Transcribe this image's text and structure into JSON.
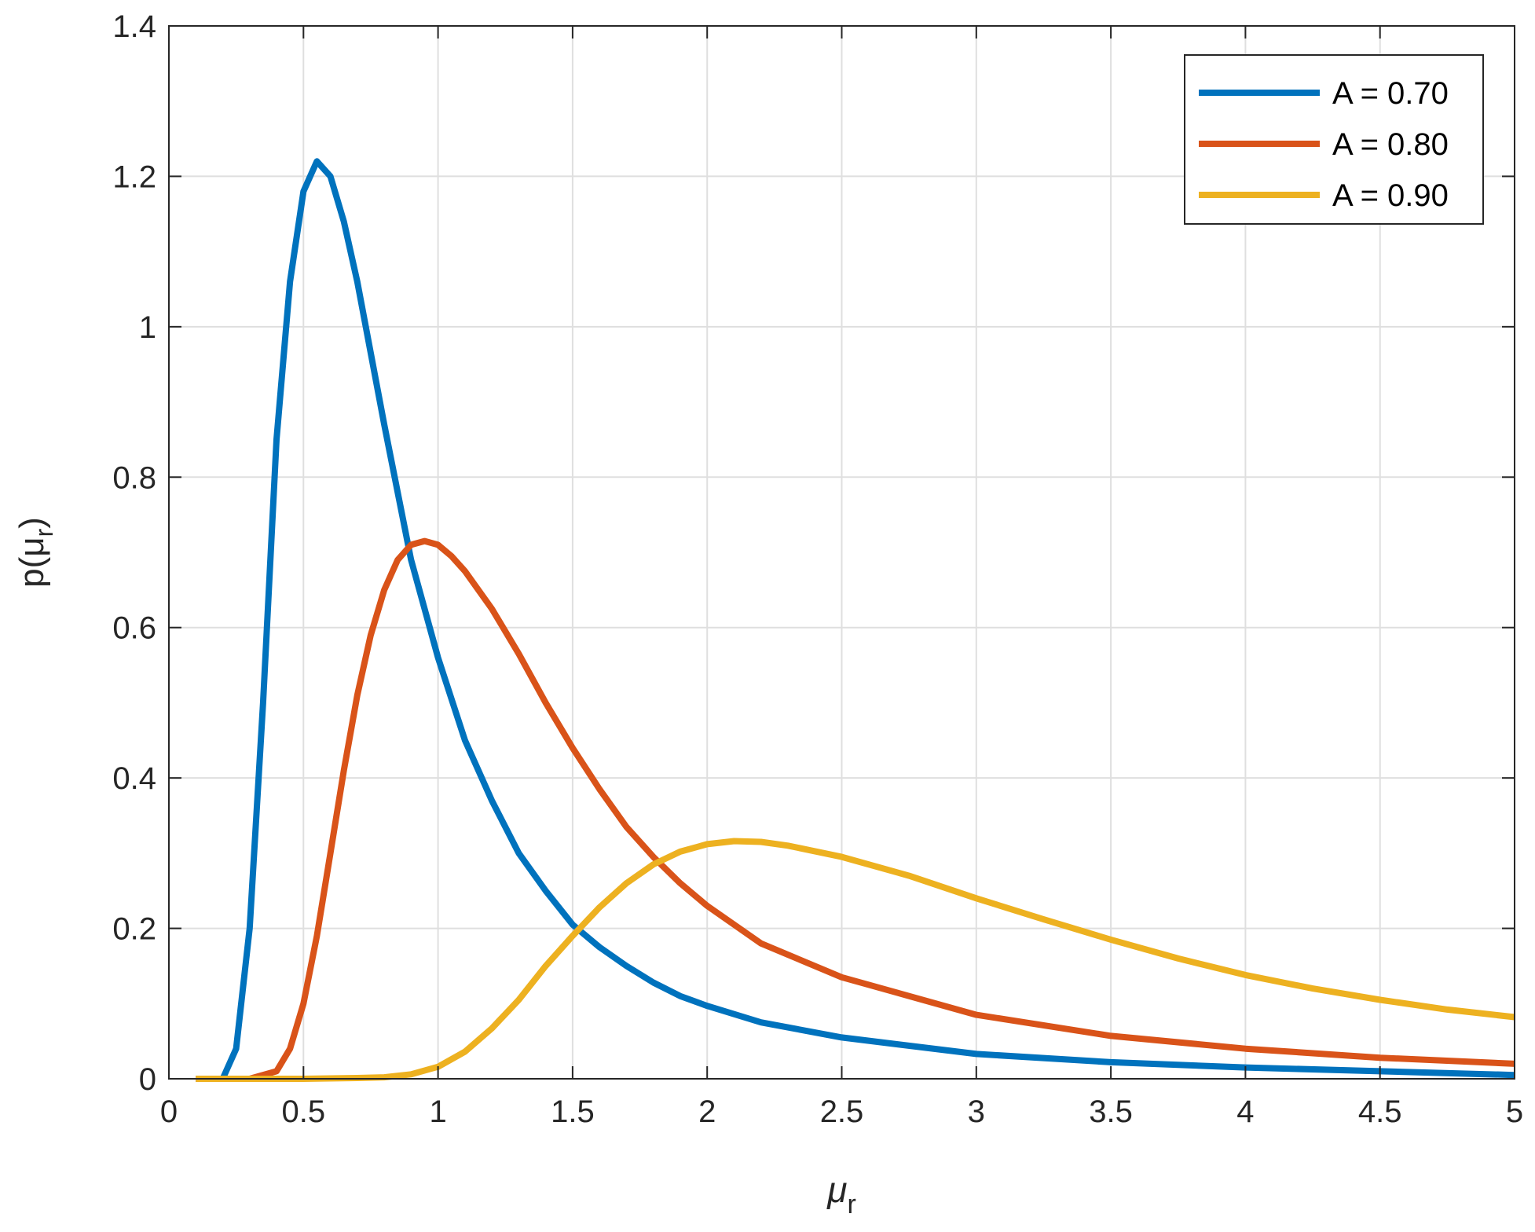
{
  "chart_data": {
    "type": "line",
    "title": "",
    "xlabel": "μ",
    "xlabel_sub": "r",
    "ylabel": "p(μ",
    "ylabel_sub": "r",
    "ylabel_suffix": ")",
    "xlim": [
      0,
      5
    ],
    "ylim": [
      0,
      1.4
    ],
    "xticks": [
      0,
      0.5,
      1,
      1.5,
      2,
      2.5,
      3,
      3.5,
      4,
      4.5,
      5
    ],
    "yticks": [
      0,
      0.2,
      0.4,
      0.6,
      0.8,
      1,
      1.2,
      1.4
    ],
    "xtick_labels": [
      "0",
      "0.5",
      "1",
      "1.5",
      "2",
      "2.5",
      "3",
      "3.5",
      "4",
      "4.5",
      "5"
    ],
    "ytick_labels": [
      "0",
      "0.2",
      "0.4",
      "0.6",
      "0.8",
      "1",
      "1.2",
      "1.4"
    ],
    "grid": true,
    "legend_position": "top-right",
    "series": [
      {
        "name": "A = 0.70",
        "color": "#0072BD",
        "points": [
          [
            0.1,
            0
          ],
          [
            0.2,
            0
          ],
          [
            0.25,
            0.04
          ],
          [
            0.3,
            0.2
          ],
          [
            0.35,
            0.5
          ],
          [
            0.4,
            0.85
          ],
          [
            0.45,
            1.06
          ],
          [
            0.5,
            1.18
          ],
          [
            0.55,
            1.22
          ],
          [
            0.6,
            1.2
          ],
          [
            0.65,
            1.14
          ],
          [
            0.7,
            1.06
          ],
          [
            0.8,
            0.87
          ],
          [
            0.9,
            0.69
          ],
          [
            1.0,
            0.56
          ],
          [
            1.1,
            0.45
          ],
          [
            1.2,
            0.37
          ],
          [
            1.3,
            0.3
          ],
          [
            1.4,
            0.25
          ],
          [
            1.5,
            0.205
          ],
          [
            1.6,
            0.175
          ],
          [
            1.7,
            0.15
          ],
          [
            1.8,
            0.128
          ],
          [
            1.9,
            0.11
          ],
          [
            2.0,
            0.097
          ],
          [
            2.2,
            0.075
          ],
          [
            2.5,
            0.055
          ],
          [
            3.0,
            0.033
          ],
          [
            3.5,
            0.022
          ],
          [
            4.0,
            0.015
          ],
          [
            4.5,
            0.01
          ],
          [
            5.0,
            0.005
          ]
        ]
      },
      {
        "name": "A = 0.80",
        "color": "#D95319",
        "points": [
          [
            0.1,
            0
          ],
          [
            0.3,
            0
          ],
          [
            0.4,
            0.01
          ],
          [
            0.45,
            0.04
          ],
          [
            0.5,
            0.1
          ],
          [
            0.55,
            0.19
          ],
          [
            0.6,
            0.3
          ],
          [
            0.65,
            0.41
          ],
          [
            0.7,
            0.51
          ],
          [
            0.75,
            0.59
          ],
          [
            0.8,
            0.65
          ],
          [
            0.85,
            0.69
          ],
          [
            0.9,
            0.71
          ],
          [
            0.95,
            0.715
          ],
          [
            1.0,
            0.71
          ],
          [
            1.05,
            0.695
          ],
          [
            1.1,
            0.675
          ],
          [
            1.2,
            0.625
          ],
          [
            1.3,
            0.565
          ],
          [
            1.4,
            0.5
          ],
          [
            1.5,
            0.44
          ],
          [
            1.6,
            0.385
          ],
          [
            1.7,
            0.335
          ],
          [
            1.8,
            0.295
          ],
          [
            1.9,
            0.26
          ],
          [
            2.0,
            0.23
          ],
          [
            2.2,
            0.18
          ],
          [
            2.5,
            0.135
          ],
          [
            3.0,
            0.085
          ],
          [
            3.5,
            0.057
          ],
          [
            4.0,
            0.04
          ],
          [
            4.5,
            0.028
          ],
          [
            5.0,
            0.02
          ]
        ]
      },
      {
        "name": "A = 0.90",
        "color": "#EDB120",
        "points": [
          [
            0.1,
            0
          ],
          [
            0.5,
            0
          ],
          [
            0.7,
            0.001
          ],
          [
            0.8,
            0.002
          ],
          [
            0.9,
            0.006
          ],
          [
            1.0,
            0.016
          ],
          [
            1.1,
            0.036
          ],
          [
            1.2,
            0.067
          ],
          [
            1.3,
            0.105
          ],
          [
            1.4,
            0.15
          ],
          [
            1.5,
            0.19
          ],
          [
            1.6,
            0.228
          ],
          [
            1.7,
            0.26
          ],
          [
            1.8,
            0.285
          ],
          [
            1.9,
            0.302
          ],
          [
            2.0,
            0.312
          ],
          [
            2.1,
            0.316
          ],
          [
            2.2,
            0.315
          ],
          [
            2.3,
            0.31
          ],
          [
            2.5,
            0.295
          ],
          [
            2.75,
            0.27
          ],
          [
            3.0,
            0.24
          ],
          [
            3.25,
            0.212
          ],
          [
            3.5,
            0.185
          ],
          [
            3.75,
            0.16
          ],
          [
            4.0,
            0.138
          ],
          [
            4.25,
            0.12
          ],
          [
            4.5,
            0.105
          ],
          [
            4.75,
            0.092
          ],
          [
            5.0,
            0.082
          ]
        ]
      }
    ]
  }
}
